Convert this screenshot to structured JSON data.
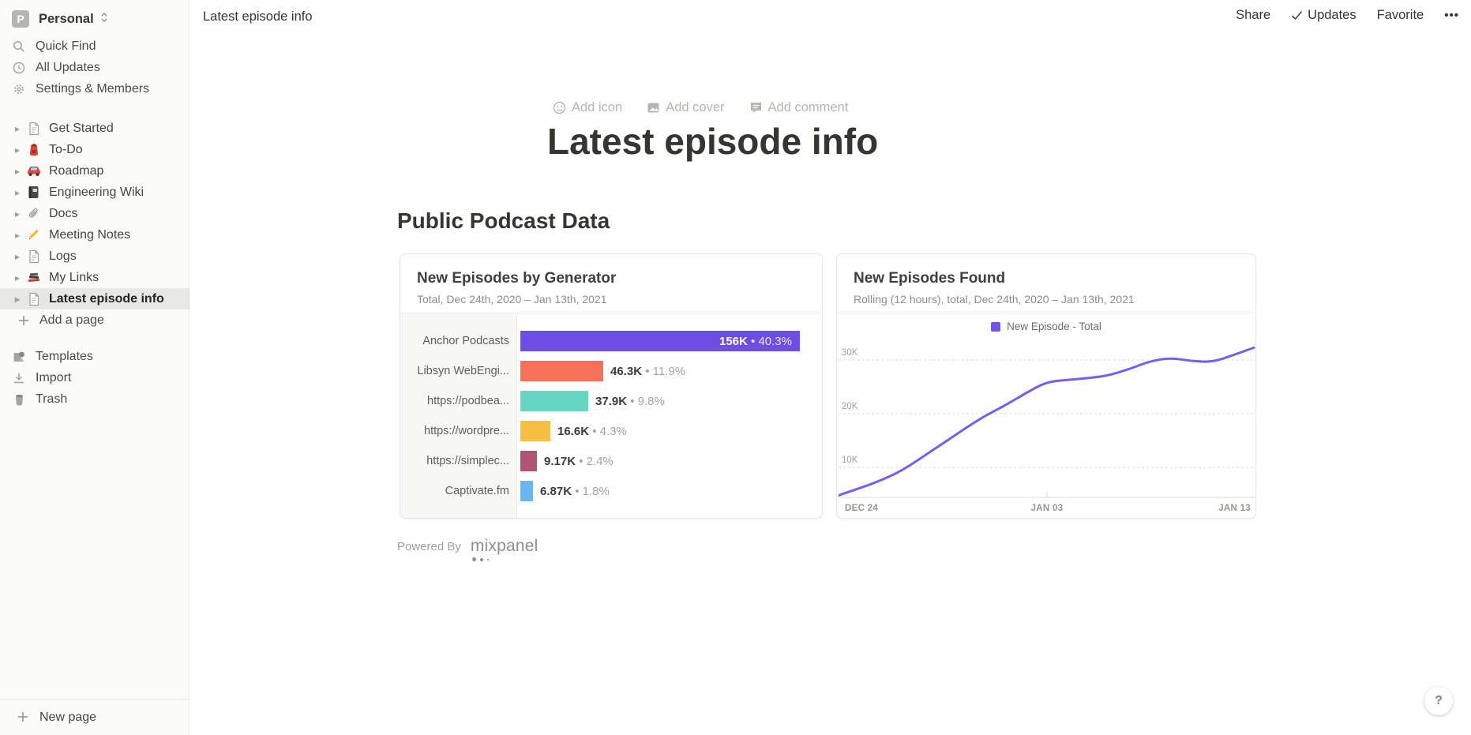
{
  "workspace": {
    "name": "Personal",
    "avatar_letter": "P"
  },
  "sidebar": {
    "top_items": [
      {
        "label": "Quick Find",
        "icon": "search-icon"
      },
      {
        "label": "All Updates",
        "icon": "clock-icon"
      },
      {
        "label": "Settings & Members",
        "icon": "gear-icon"
      }
    ],
    "pages": [
      {
        "label": "Get Started",
        "icon": "doc-icon",
        "selected": false
      },
      {
        "label": "To-Do",
        "icon": "backpack-icon",
        "selected": false
      },
      {
        "label": "Roadmap",
        "icon": "car-icon",
        "selected": false
      },
      {
        "label": "Engineering Wiki",
        "icon": "notebook-icon",
        "selected": false
      },
      {
        "label": "Docs",
        "icon": "paperclip-icon",
        "selected": false
      },
      {
        "label": "Meeting Notes",
        "icon": "pencil-icon",
        "selected": false
      },
      {
        "label": "Logs",
        "icon": "doc-icon",
        "selected": false
      },
      {
        "label": "My Links",
        "icon": "books-icon",
        "selected": false
      },
      {
        "label": "Latest episode info",
        "icon": "doc-icon",
        "selected": true
      }
    ],
    "add_page_label": "Add a page",
    "bottom_items": [
      {
        "label": "Templates",
        "icon": "templates-icon"
      },
      {
        "label": "Import",
        "icon": "import-icon"
      },
      {
        "label": "Trash",
        "icon": "trash-icon"
      }
    ],
    "new_page_label": "New page"
  },
  "topbar": {
    "breadcrumb": "Latest episode info",
    "share_label": "Share",
    "updates_label": "Updates",
    "favorite_label": "Favorite",
    "more_label": "•••"
  },
  "page": {
    "actions": [
      {
        "label": "Add icon",
        "icon": "emoji-icon"
      },
      {
        "label": "Add cover",
        "icon": "image-icon"
      },
      {
        "label": "Add comment",
        "icon": "comment-icon"
      }
    ],
    "title": "Latest episode info",
    "section_heading": "Public Podcast Data",
    "powered_by": "Powered By",
    "powered_by_brand": "mixpanel"
  },
  "help_label": "?",
  "chart_data": [
    {
      "type": "bar",
      "orientation": "horizontal",
      "title": "New Episodes by Generator",
      "subtitle": "Total, Dec 24th, 2020 – Jan 13th, 2021",
      "categories": [
        "Anchor Podcasts",
        "Libsyn WebEngi...",
        "https://podbea...",
        "https://wordpre...",
        "https://simplec...",
        "Captivate.fm"
      ],
      "values": [
        156000,
        46300,
        37900,
        16600,
        9170,
        6870
      ],
      "value_labels": [
        "156K",
        "46.3K",
        "37.9K",
        "16.6K",
        "9.17K",
        "6.87K"
      ],
      "percent_labels": [
        "40.3%",
        "11.9%",
        "9.8%",
        "4.3%",
        "2.4%",
        "1.8%"
      ],
      "colors": [
        "#6c4ee3",
        "#f7705a",
        "#66d6c3",
        "#f7bf42",
        "#b15672",
        "#67b7f2"
      ],
      "value_inside": [
        true,
        false,
        false,
        false,
        false,
        false
      ],
      "separator": "•"
    },
    {
      "type": "line",
      "title": "New Episodes Found",
      "subtitle": "Rolling (12 hours), total, Dec 24th, 2020 – Jan 13th, 2021",
      "legend": [
        "New Episode - Total"
      ],
      "line_color": "#7b5cf2",
      "legend_color": "#7452eb",
      "x_ticks": [
        "DEC 24",
        "JAN 03",
        "JAN 13"
      ],
      "y_ticks": [
        "10K",
        "20K",
        "30K"
      ],
      "y_tick_values": [
        10000,
        20000,
        30000
      ],
      "ylim": [
        0,
        33000
      ],
      "x_range": "Dec 24, 2020 – Jan 13, 2021 (daily)",
      "values": [
        4800,
        6100,
        7500,
        9300,
        11800,
        14400,
        17000,
        19500,
        21500,
        23800,
        25900,
        26300,
        26600,
        27100,
        28300,
        29800,
        30400,
        29800,
        29600,
        30900,
        32300
      ],
      "grid": "dashed-horizontal",
      "legend_position": "top-center"
    }
  ]
}
